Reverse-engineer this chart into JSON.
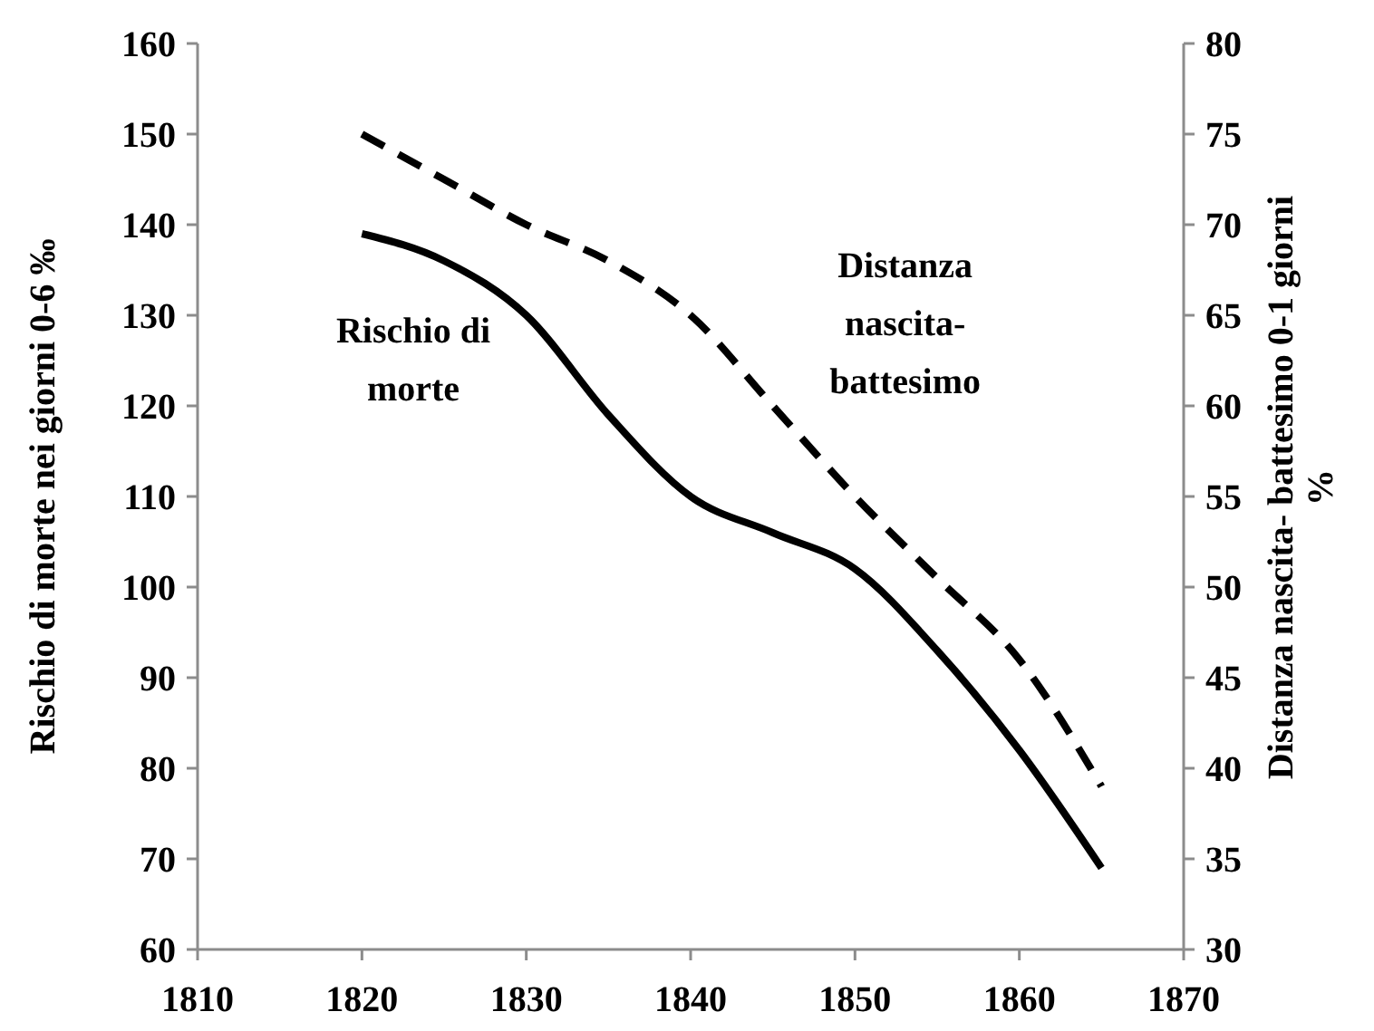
{
  "chart_data": {
    "type": "line",
    "xlabel": null,
    "ylabel": "Rischio di morte nei giorni 0-6 ‰",
    "y2label": "Distanza nascita- battesimo 0-1 giorni %",
    "x": [
      1820,
      1825,
      1830,
      1835,
      1840,
      1845,
      1850,
      1855,
      1860,
      1865
    ],
    "series": [
      {
        "name": "Rischio di morte",
        "color": "#000000",
        "line_style": "solid",
        "values": [
          139,
          136,
          130,
          119,
          110,
          106,
          102,
          93,
          82,
          69
        ]
      },
      {
        "name": "Distanza nascita-battesimo",
        "color": "#000000",
        "line_style": "dashed",
        "axis": "y2",
        "values": [
          75,
          72.5,
          70,
          68,
          65,
          60,
          55,
          50.5,
          46,
          39
        ]
      }
    ],
    "xlim": [
      1810,
      1870
    ],
    "xticks": [
      1810,
      1820,
      1830,
      1840,
      1850,
      1860,
      1870
    ],
    "ylim": [
      60,
      160
    ],
    "yticks": [
      60,
      70,
      80,
      90,
      100,
      110,
      120,
      130,
      140,
      150,
      160
    ],
    "y2lim": [
      30,
      80
    ],
    "y2ticks": [
      30,
      35,
      40,
      45,
      50,
      55,
      60,
      65,
      70,
      75,
      80
    ],
    "grid": false,
    "marker": "none"
  }
}
